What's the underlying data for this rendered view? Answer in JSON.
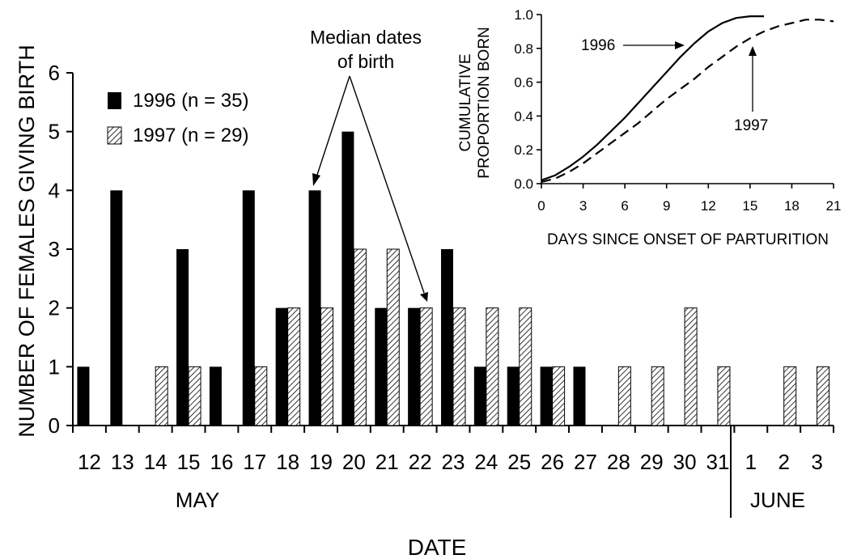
{
  "chart_data": [
    {
      "type": "bar",
      "xlabel": "DATE",
      "ylabel": "NUMBER OF FEMALES GIVING BIRTH",
      "ylim": [
        0,
        6
      ],
      "yticks": [
        "0",
        "1",
        "2",
        "3",
        "4",
        "5",
        "6"
      ],
      "categories": [
        "12",
        "13",
        "14",
        "15",
        "16",
        "17",
        "18",
        "19",
        "20",
        "21",
        "22",
        "23",
        "24",
        "25",
        "26",
        "27",
        "28",
        "29",
        "30",
        "31",
        "1",
        "2",
        "3"
      ],
      "month_labels": [
        "MAY",
        "JUNE"
      ],
      "series": [
        {
          "name": "1996",
          "legend_suffix": "(n = 35)",
          "fill": "solid",
          "values": [
            1,
            4,
            0,
            3,
            1,
            4,
            2,
            4,
            5,
            2,
            2,
            3,
            1,
            1,
            1,
            1,
            0,
            0,
            0,
            0,
            0,
            0,
            0
          ]
        },
        {
          "name": "1997",
          "legend_suffix": "(n = 29)",
          "fill": "hatched",
          "values": [
            0,
            0,
            1,
            1,
            0,
            1,
            2,
            2,
            3,
            3,
            2,
            2,
            2,
            2,
            1,
            0,
            1,
            1,
            2,
            1,
            0,
            1,
            1
          ]
        }
      ],
      "annotation": {
        "line1": "Median dates",
        "line2": "of birth",
        "points_to": [
          "19",
          "22"
        ]
      },
      "legend_position": "top-left",
      "grid": false
    },
    {
      "type": "line",
      "xlabel": "DAYS SINCE ONSET OF PARTURITION",
      "ylabel_line1": "CUMULATIVE",
      "ylabel_line2": "PROPORTION BORN",
      "xlim": [
        0,
        21
      ],
      "ylim": [
        0,
        1
      ],
      "xticks": [
        "0",
        "3",
        "6",
        "9",
        "12",
        "15",
        "18",
        "21"
      ],
      "yticks": [
        "0.0",
        "0.2",
        "0.4",
        "0.6",
        "0.8",
        "1.0"
      ],
      "series": [
        {
          "name": "1996",
          "style": "solid",
          "x": [
            0,
            1,
            2,
            3,
            4,
            5,
            6,
            7,
            8,
            9,
            10,
            11,
            12,
            13,
            14,
            15,
            16
          ],
          "y": [
            0.02,
            0.05,
            0.1,
            0.16,
            0.23,
            0.31,
            0.39,
            0.48,
            0.57,
            0.66,
            0.75,
            0.83,
            0.9,
            0.95,
            0.98,
            0.99,
            0.99
          ]
        },
        {
          "name": "1997",
          "style": "dashed",
          "x": [
            0,
            1,
            2,
            3,
            4,
            5,
            6,
            7,
            8,
            9,
            10,
            11,
            12,
            13,
            14,
            15,
            16,
            17,
            18,
            19,
            20,
            21
          ],
          "y": [
            0.01,
            0.03,
            0.07,
            0.12,
            0.18,
            0.24,
            0.3,
            0.36,
            0.43,
            0.5,
            0.56,
            0.62,
            0.69,
            0.75,
            0.81,
            0.86,
            0.9,
            0.93,
            0.95,
            0.97,
            0.97,
            0.96
          ]
        }
      ],
      "grid": false
    }
  ]
}
